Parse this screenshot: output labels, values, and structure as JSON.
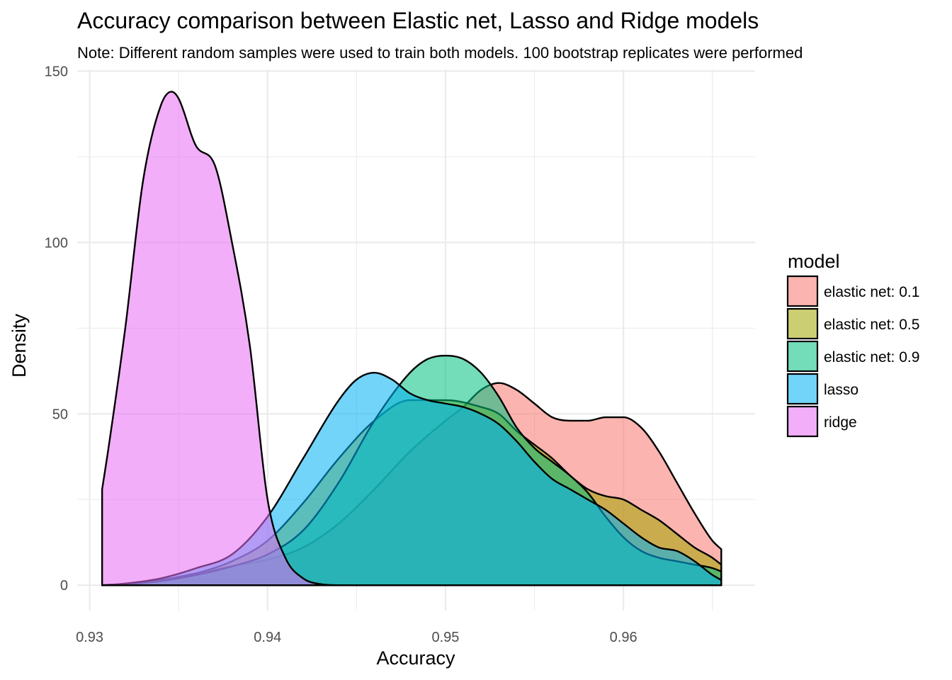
{
  "chart_data": {
    "type": "area",
    "title": "Accuracy comparison between Elastic net, Lasso and Ridge models",
    "subtitle": "Note: Different random samples were used to train both models. 100 bootstrap replicates were performed",
    "xlabel": "Accuracy",
    "ylabel": "Density",
    "xlim": [
      0.9293,
      0.9674
    ],
    "ylim": [
      -7.4,
      150.5
    ],
    "x_ticks": [
      0.93,
      0.94,
      0.95,
      0.96
    ],
    "x_tick_labels": [
      "0.93",
      "0.94",
      "0.95",
      "0.96"
    ],
    "y_ticks": [
      0,
      50,
      100,
      150
    ],
    "y_tick_labels": [
      "0",
      "50",
      "100",
      "150"
    ],
    "grid": true,
    "legend": {
      "title": "model",
      "position": "right"
    },
    "series": [
      {
        "name": "elastic net: 0.1",
        "color": "#F8766D",
        "points": [
          [
            0.9307,
            0
          ],
          [
            0.932,
            0.4
          ],
          [
            0.934,
            1.5
          ],
          [
            0.936,
            3.5
          ],
          [
            0.938,
            5.5
          ],
          [
            0.94,
            7.5
          ],
          [
            0.942,
            11
          ],
          [
            0.944,
            18
          ],
          [
            0.946,
            28
          ],
          [
            0.948,
            39
          ],
          [
            0.95,
            48
          ],
          [
            0.951,
            52
          ],
          [
            0.952,
            57
          ],
          [
            0.953,
            59
          ],
          [
            0.954,
            57
          ],
          [
            0.955,
            53
          ],
          [
            0.956,
            49
          ],
          [
            0.957,
            48
          ],
          [
            0.958,
            48
          ],
          [
            0.959,
            49
          ],
          [
            0.96,
            49
          ],
          [
            0.961,
            46
          ],
          [
            0.962,
            39
          ],
          [
            0.963,
            30
          ],
          [
            0.964,
            21
          ],
          [
            0.965,
            13
          ],
          [
            0.9655,
            10.5
          ]
        ]
      },
      {
        "name": "elastic net: 0.5",
        "color": "#A3A500",
        "points": [
          [
            0.9307,
            0
          ],
          [
            0.932,
            0.4
          ],
          [
            0.934,
            1.5
          ],
          [
            0.936,
            3.5
          ],
          [
            0.938,
            7
          ],
          [
            0.94,
            13
          ],
          [
            0.942,
            24
          ],
          [
            0.944,
            37
          ],
          [
            0.946,
            48
          ],
          [
            0.948,
            54
          ],
          [
            0.95,
            54
          ],
          [
            0.952,
            52
          ],
          [
            0.953,
            50
          ],
          [
            0.954,
            45
          ],
          [
            0.955,
            41
          ],
          [
            0.956,
            37
          ],
          [
            0.957,
            32
          ],
          [
            0.958,
            28
          ],
          [
            0.959,
            26
          ],
          [
            0.96,
            25
          ],
          [
            0.961,
            22
          ],
          [
            0.962,
            19
          ],
          [
            0.963,
            15
          ],
          [
            0.964,
            11
          ],
          [
            0.965,
            8
          ],
          [
            0.9655,
            6
          ]
        ]
      },
      {
        "name": "elastic net: 0.9",
        "color": "#00BF7D",
        "points": [
          [
            0.9307,
            0
          ],
          [
            0.932,
            0.3
          ],
          [
            0.934,
            1.2
          ],
          [
            0.936,
            3
          ],
          [
            0.938,
            5.5
          ],
          [
            0.94,
            9
          ],
          [
            0.942,
            16
          ],
          [
            0.944,
            30
          ],
          [
            0.946,
            48
          ],
          [
            0.948,
            62
          ],
          [
            0.949,
            66
          ],
          [
            0.95,
            67
          ],
          [
            0.951,
            66
          ],
          [
            0.952,
            62
          ],
          [
            0.953,
            55
          ],
          [
            0.954,
            46
          ],
          [
            0.955,
            40
          ],
          [
            0.956,
            36
          ],
          [
            0.957,
            32
          ],
          [
            0.958,
            27
          ],
          [
            0.959,
            20
          ],
          [
            0.96,
            14
          ],
          [
            0.961,
            10
          ],
          [
            0.962,
            8
          ],
          [
            0.963,
            7
          ],
          [
            0.964,
            6
          ],
          [
            0.965,
            5
          ],
          [
            0.9655,
            4
          ]
        ]
      },
      {
        "name": "lasso",
        "color": "#00B0F6",
        "points": [
          [
            0.9307,
            0
          ],
          [
            0.932,
            0.5
          ],
          [
            0.934,
            2
          ],
          [
            0.936,
            5
          ],
          [
            0.938,
            9
          ],
          [
            0.94,
            20
          ],
          [
            0.942,
            37
          ],
          [
            0.944,
            54
          ],
          [
            0.945,
            60
          ],
          [
            0.946,
            62
          ],
          [
            0.947,
            60
          ],
          [
            0.948,
            56
          ],
          [
            0.949,
            54
          ],
          [
            0.95,
            53
          ],
          [
            0.951,
            52
          ],
          [
            0.952,
            50
          ],
          [
            0.953,
            47
          ],
          [
            0.954,
            42
          ],
          [
            0.955,
            36
          ],
          [
            0.956,
            31
          ],
          [
            0.957,
            28
          ],
          [
            0.958,
            25
          ],
          [
            0.959,
            22
          ],
          [
            0.96,
            18
          ],
          [
            0.961,
            14
          ],
          [
            0.962,
            11
          ],
          [
            0.963,
            10
          ],
          [
            0.964,
            7
          ],
          [
            0.965,
            3
          ],
          [
            0.9655,
            1.5
          ]
        ]
      },
      {
        "name": "ridge",
        "color": "#E76BF3",
        "points": [
          [
            0.9307,
            28
          ],
          [
            0.931,
            38
          ],
          [
            0.932,
            75
          ],
          [
            0.933,
            118
          ],
          [
            0.934,
            140
          ],
          [
            0.9346,
            144
          ],
          [
            0.935,
            142
          ],
          [
            0.936,
            128
          ],
          [
            0.937,
            123
          ],
          [
            0.938,
            100
          ],
          [
            0.939,
            70
          ],
          [
            0.94,
            25
          ],
          [
            0.941,
            8
          ],
          [
            0.942,
            2
          ],
          [
            0.943,
            0.3
          ],
          [
            0.944,
            0
          ],
          [
            0.9655,
            0
          ]
        ]
      }
    ]
  }
}
